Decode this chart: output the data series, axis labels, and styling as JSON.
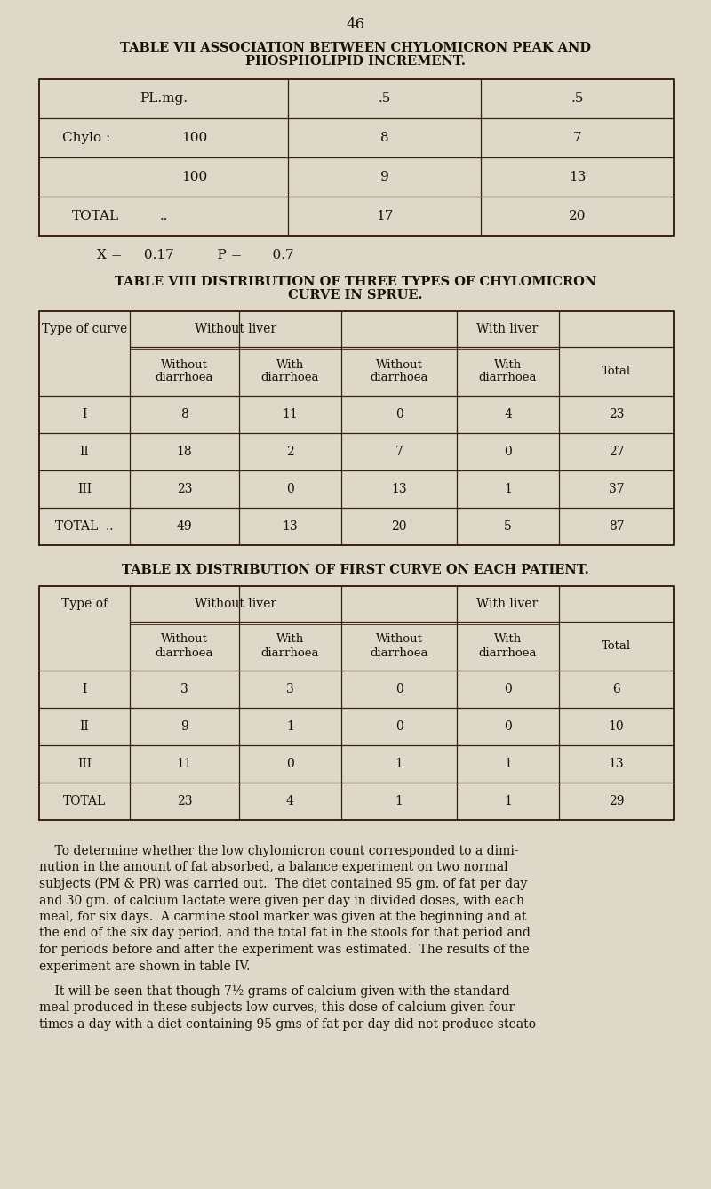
{
  "bg_color": "#ddd8c8",
  "text_color": "#1a1008",
  "line_color": "#3a2010",
  "page_number": "46",
  "table7_title1": "TABLE VII ASSOCIATION BETWEEN CHYLOMICRON PEAK AND",
  "table7_title2": "PHOSPHOLIPID INCREMENT.",
  "table8_title1": "TABLE VIII DISTRIBUTION OF THREE TYPES OF CHYLOMICRON",
  "table8_title2": "CURVE IN SPRUE.",
  "table9_title": "TABLE IX DISTRIBUTION OF FIRST CURVE ON EACH PATIENT.",
  "formula": "X =     0.17          P =       0.7",
  "t7_rows": [
    [
      "PL.mg.",
      "",
      ".5",
      ".5"
    ],
    [
      "Chylo :",
      "100",
      "8",
      "7"
    ],
    [
      "",
      "100",
      "9",
      "13"
    ],
    [
      "TOTAL",
      "..",
      "17",
      "20"
    ]
  ],
  "t8_rows": [
    [
      "I",
      "8",
      "11",
      "0",
      "4",
      "23"
    ],
    [
      "II",
      "18",
      "2",
      "7",
      "0",
      "27"
    ],
    [
      "III",
      "23",
      "0",
      "13",
      "1",
      "37"
    ],
    [
      "TOTAL  ..",
      "49",
      "13",
      "20",
      "5",
      "87"
    ]
  ],
  "t9_rows": [
    [
      "I",
      "3",
      "3",
      "0",
      "0",
      "6"
    ],
    [
      "II",
      "9",
      "1",
      "0",
      "0",
      "10"
    ],
    [
      "III",
      "11",
      "0",
      "1",
      "1",
      "13"
    ],
    [
      "TOTAL",
      "23",
      "4",
      "1",
      "1",
      "29"
    ]
  ],
  "para1_lines": [
    "    To determine whether the low chylomicron count corresponded to a dimi-",
    "nution in the amount of fat absorbed, a balance experiment on two normal",
    "subjects (PM & PR) was carried out.  The diet contained 95 gm. of fat per day",
    "and 30 gm. of calcium lactate were given per day in divided doses, with each",
    "meal, for six days.  A carmine stool marker was given at the beginning and at",
    "the end of the six day period, and the total fat in the stools for that period and",
    "for periods before and after the experiment was estimated.  The results of the",
    "experiment are shown in table IV."
  ],
  "para2_lines": [
    "    It will be seen that though 7½ grams of calcium given with the standard",
    "meal produced in these subjects low curves, this dose of calcium given four",
    "times a day with a diet containing 95 gms of fat per day did not produce steato-"
  ]
}
